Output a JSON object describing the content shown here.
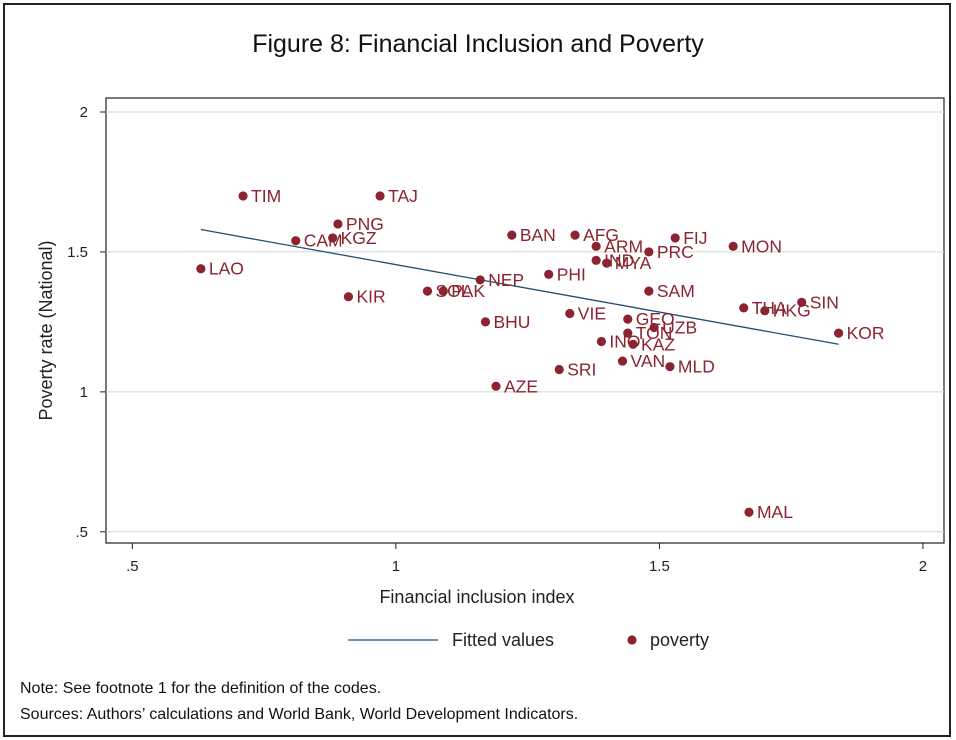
{
  "title": "Figure 8: Financial Inclusion and Poverty",
  "notes": {
    "note": "Note: See footnote 1 for the definition of the codes.",
    "sources": "Sources: Authors’ calculations and World Bank, World Development Indicators."
  },
  "colors": {
    "points": "#8b2430",
    "fit": "#1f4e79",
    "grid": "#d4d4d4",
    "axis": "#222222"
  },
  "chart_data": {
    "type": "scatter",
    "title": "Figure 8: Financial Inclusion and Poverty",
    "xlabel": "Financial inclusion index",
    "ylabel": "Poverty rate (National)",
    "xlim": [
      0.45,
      2.04
    ],
    "ylim": [
      0.46,
      2.05
    ],
    "x_ticks": [
      0.5,
      1,
      1.5,
      2
    ],
    "x_tick_labels": [
      ".5",
      "1",
      "1.5",
      "2"
    ],
    "y_ticks": [
      0.5,
      1,
      1.5,
      2
    ],
    "y_tick_labels": [
      ".5",
      "1",
      "1.5",
      "2"
    ],
    "grid": "horizontal",
    "legend": {
      "placement": "bottom",
      "entries": [
        "Fitted values",
        "poverty"
      ]
    },
    "fitted_line": {
      "name": "Fitted values",
      "x": [
        0.63,
        1.84
      ],
      "y": [
        1.58,
        1.17
      ]
    },
    "series": [
      {
        "name": "poverty",
        "points": [
          {
            "label": "TIM",
            "x": 0.71,
            "y": 1.7
          },
          {
            "label": "TAJ",
            "x": 0.97,
            "y": 1.7
          },
          {
            "label": "PNG",
            "x": 0.89,
            "y": 1.6
          },
          {
            "label": "CAM",
            "x": 0.81,
            "y": 1.54
          },
          {
            "label": "KGZ",
            "x": 0.88,
            "y": 1.55
          },
          {
            "label": "LAO",
            "x": 0.63,
            "y": 1.44
          },
          {
            "label": "KIR",
            "x": 0.91,
            "y": 1.34
          },
          {
            "label": "PAK",
            "x": 1.09,
            "y": 1.36
          },
          {
            "label": "SOL",
            "x": 1.06,
            "y": 1.36
          },
          {
            "label": "NEP",
            "x": 1.16,
            "y": 1.4
          },
          {
            "label": "BHU",
            "x": 1.17,
            "y": 1.25
          },
          {
            "label": "BAN",
            "x": 1.22,
            "y": 1.56
          },
          {
            "label": "AFG",
            "x": 1.34,
            "y": 1.56
          },
          {
            "label": "ARM",
            "x": 1.38,
            "y": 1.52
          },
          {
            "label": "IND",
            "x": 1.38,
            "y": 1.47
          },
          {
            "label": "MYA",
            "x": 1.4,
            "y": 1.46
          },
          {
            "label": "PHI",
            "x": 1.29,
            "y": 1.42
          },
          {
            "label": "PRC",
            "x": 1.48,
            "y": 1.5
          },
          {
            "label": "FIJ",
            "x": 1.53,
            "y": 1.55
          },
          {
            "label": "MON",
            "x": 1.64,
            "y": 1.52
          },
          {
            "label": "SAM",
            "x": 1.48,
            "y": 1.36
          },
          {
            "label": "VIE",
            "x": 1.33,
            "y": 1.28
          },
          {
            "label": "GEO",
            "x": 1.44,
            "y": 1.26
          },
          {
            "label": "TON",
            "x": 1.44,
            "y": 1.21
          },
          {
            "label": "UZB",
            "x": 1.49,
            "y": 1.23
          },
          {
            "label": "INO",
            "x": 1.39,
            "y": 1.18
          },
          {
            "label": "KAZ",
            "x": 1.45,
            "y": 1.17
          },
          {
            "label": "VAN",
            "x": 1.43,
            "y": 1.11
          },
          {
            "label": "MLD",
            "x": 1.52,
            "y": 1.09
          },
          {
            "label": "SRI",
            "x": 1.31,
            "y": 1.08
          },
          {
            "label": "AZE",
            "x": 1.19,
            "y": 1.02
          },
          {
            "label": "THA",
            "x": 1.66,
            "y": 1.3
          },
          {
            "label": "HKG",
            "x": 1.7,
            "y": 1.29
          },
          {
            "label": "SIN",
            "x": 1.77,
            "y": 1.32
          },
          {
            "label": "KOR",
            "x": 1.84,
            "y": 1.21
          },
          {
            "label": "MAL",
            "x": 1.67,
            "y": 0.57
          }
        ]
      }
    ]
  }
}
